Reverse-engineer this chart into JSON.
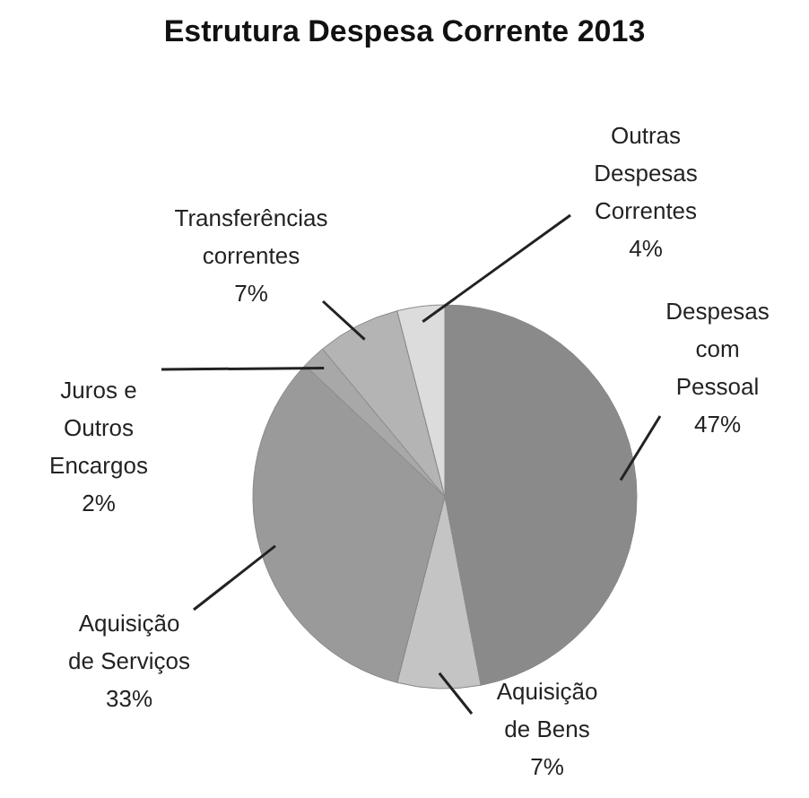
{
  "chart_data": {
    "type": "pie",
    "title": "Estrutura Despesa Corrente 2013",
    "categories": [
      "Despesas com Pessoal",
      "Aquisição de Bens",
      "Aquisição de Serviços",
      "Juros e Outros Encargos",
      "Transferências correntes",
      "Outras Despesas Correntes"
    ],
    "values": [
      47,
      7,
      33,
      2,
      7,
      4
    ],
    "value_labels": [
      "47%",
      "7%",
      "33%",
      "2%",
      "7%",
      "4%"
    ],
    "colors": [
      "#8a8a8a",
      "#c4c4c4",
      "#9a9a9a",
      "#a8a8a8",
      "#b4b4b4",
      "#dcdcdc"
    ],
    "legend": false
  }
}
